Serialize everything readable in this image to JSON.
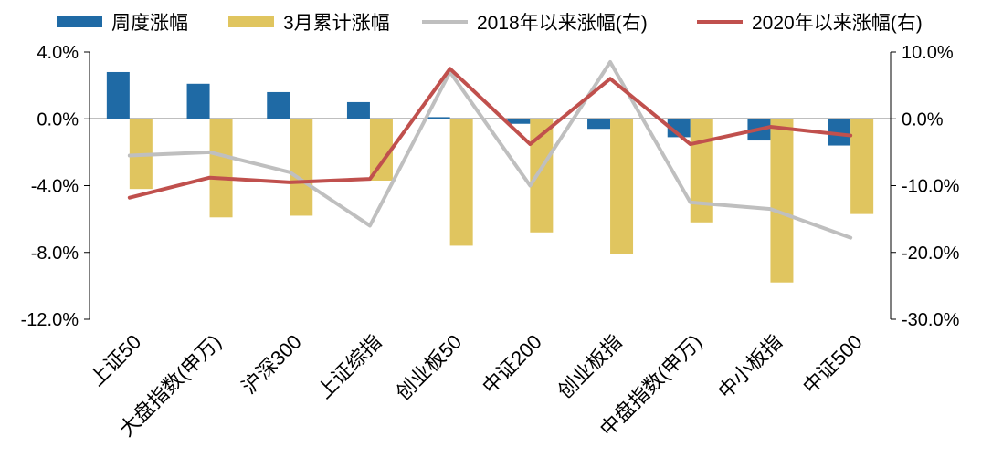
{
  "chart_data": {
    "type": "bar",
    "categories": [
      "上证50",
      "大盘指数(申万)",
      "沪深300",
      "上证综指",
      "创业板50",
      "中证200",
      "创业板指",
      "中盘指数(申万)",
      "中小板指",
      "中证500"
    ],
    "series": [
      {
        "name": "周度涨幅",
        "type": "bar",
        "axis": "left",
        "color": "#1f6aa5",
        "values": [
          2.8,
          2.1,
          1.6,
          1.0,
          0.1,
          -0.3,
          -0.6,
          -1.1,
          -1.3,
          -1.6
        ]
      },
      {
        "name": "3月累计涨幅",
        "type": "bar",
        "axis": "left",
        "color": "#e0c55f",
        "values": [
          -4.2,
          -5.9,
          -5.8,
          -3.7,
          -7.6,
          -6.8,
          -8.1,
          -6.2,
          -9.8,
          -5.7
        ]
      },
      {
        "name": "2018年以来涨幅(右)",
        "type": "line",
        "axis": "right",
        "color": "#bfbfbf",
        "values": [
          -5.5,
          -5.0,
          -8.0,
          -16.0,
          7.0,
          -10.0,
          8.5,
          -12.5,
          -13.5,
          -17.8
        ]
      },
      {
        "name": "2020年以来涨幅(右)",
        "type": "line",
        "axis": "right",
        "color": "#c0504d",
        "values": [
          -11.8,
          -8.8,
          -9.5,
          -9.0,
          7.5,
          -3.8,
          6.0,
          -3.8,
          -1.2,
          -2.5
        ]
      }
    ],
    "left_axis": {
      "min": -12,
      "max": 4,
      "ticks": [
        4,
        0,
        -4,
        -8,
        -12
      ],
      "tick_labels": [
        "4.0%",
        "0.0%",
        "-4.0%",
        "-8.0%",
        "-12.0%"
      ]
    },
    "right_axis": {
      "min": -30,
      "max": 10,
      "ticks": [
        10,
        0,
        -10,
        -20,
        -30
      ],
      "tick_labels": [
        "10.0%",
        "0.0%",
        "-10.0%",
        "-20.0%",
        "-30.0%"
      ]
    },
    "title": "",
    "xlabel": "",
    "ylabel": "",
    "grid": false,
    "legend_position": "top"
  }
}
